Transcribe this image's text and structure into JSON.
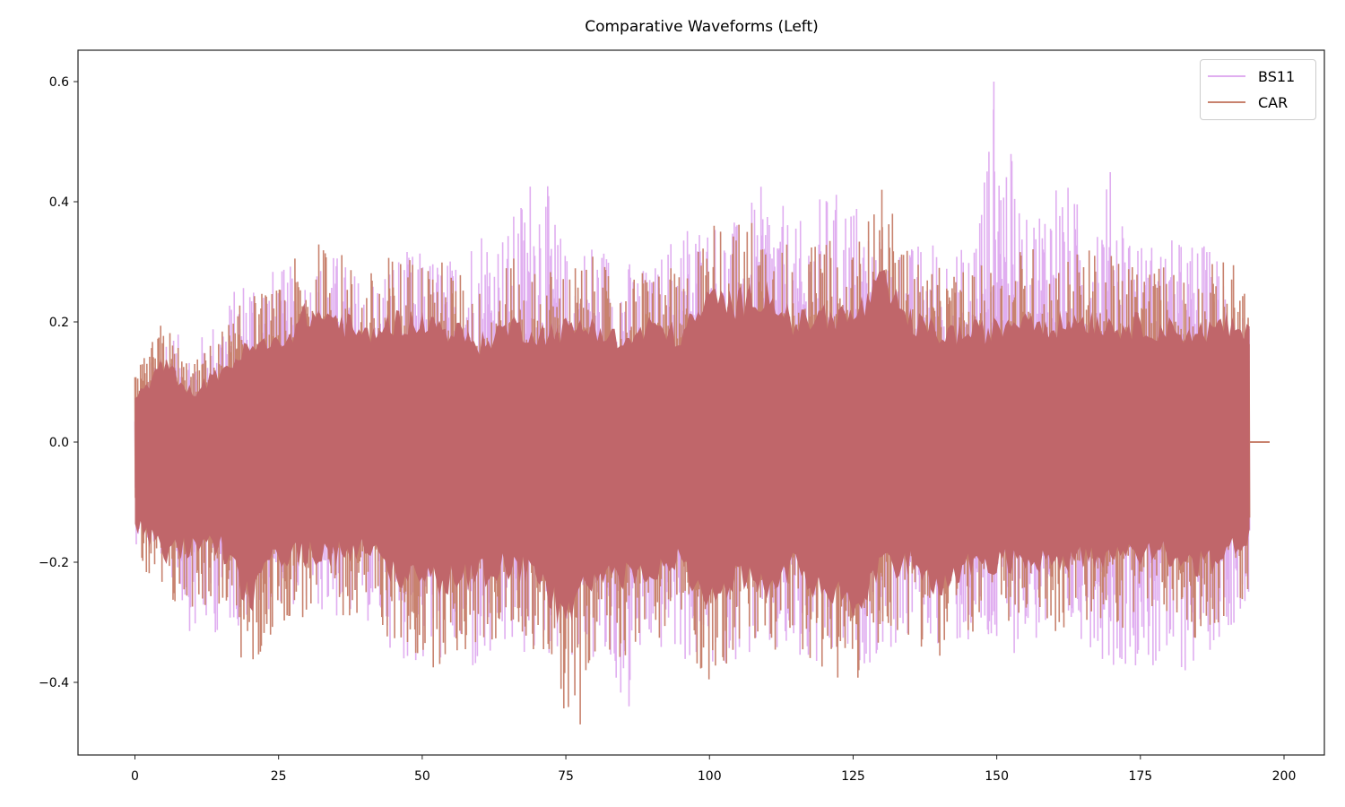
{
  "chart_data": {
    "type": "line",
    "title": "Comparative Waveforms (Left)",
    "xlabel": "",
    "ylabel": "",
    "xlim": [
      -10,
      208
    ],
    "ylim": [
      -0.52,
      0.65
    ],
    "xticks": [
      0,
      25,
      50,
      75,
      100,
      125,
      150,
      175,
      200
    ],
    "xtick_labels": [
      "0",
      "25",
      "50",
      "75",
      "100",
      "125",
      "150",
      "175",
      "200"
    ],
    "yticks": [
      0.6,
      0.4,
      0.2,
      0.0,
      -0.2,
      -0.4
    ],
    "ytick_labels": [
      "0.6",
      "0.4",
      "0.2",
      "0.0",
      "−0.2",
      "−0.4"
    ],
    "grid": false,
    "legend_position": "upper right",
    "series": [
      {
        "name": "BS11",
        "color": "#e0aef0",
        "x_range": [
          0,
          194
        ],
        "envelope_x": [
          0,
          5,
          10,
          15,
          20,
          25,
          30,
          35,
          40,
          45,
          50,
          55,
          60,
          65,
          70,
          75,
          80,
          85,
          90,
          95,
          100,
          105,
          110,
          115,
          120,
          125,
          130,
          135,
          140,
          145,
          150,
          155,
          160,
          165,
          170,
          175,
          180,
          185,
          190,
          194
        ],
        "envelope_upper": [
          0.05,
          0.2,
          0.16,
          0.22,
          0.3,
          0.29,
          0.3,
          0.32,
          0.27,
          0.32,
          0.32,
          0.31,
          0.38,
          0.36,
          0.49,
          0.32,
          0.35,
          0.31,
          0.29,
          0.38,
          0.38,
          0.37,
          0.44,
          0.36,
          0.42,
          0.42,
          0.35,
          0.33,
          0.35,
          0.32,
          0.6,
          0.37,
          0.47,
          0.39,
          0.46,
          0.34,
          0.34,
          0.34,
          0.31,
          0.19
        ],
        "envelope_lower": [
          -0.17,
          -0.2,
          -0.33,
          -0.32,
          -0.3,
          -0.27,
          -0.28,
          -0.3,
          -0.3,
          -0.35,
          -0.39,
          -0.36,
          -0.41,
          -0.36,
          -0.37,
          -0.36,
          -0.38,
          -0.44,
          -0.35,
          -0.37,
          -0.39,
          -0.36,
          -0.37,
          -0.39,
          -0.4,
          -0.38,
          -0.36,
          -0.34,
          -0.34,
          -0.35,
          -0.37,
          -0.34,
          -0.34,
          -0.33,
          -0.38,
          -0.37,
          -0.41,
          -0.37,
          -0.32,
          -0.26
        ],
        "peak_max": {
          "x": 149.5,
          "y": 0.6
        },
        "peak_min": {
          "x": 86,
          "y": -0.44
        }
      },
      {
        "name": "CAR",
        "color": "#c8826e",
        "x_range": [
          0,
          197.5
        ],
        "envelope_x": [
          0,
          5,
          10,
          15,
          20,
          25,
          30,
          35,
          40,
          45,
          50,
          55,
          60,
          65,
          70,
          75,
          80,
          85,
          90,
          95,
          100,
          105,
          110,
          115,
          120,
          125,
          130,
          135,
          140,
          145,
          150,
          155,
          160,
          165,
          170,
          175,
          180,
          185,
          190,
          194,
          197.5
        ],
        "envelope_upper": [
          0.11,
          0.21,
          0.13,
          0.19,
          0.25,
          0.26,
          0.34,
          0.33,
          0.28,
          0.32,
          0.32,
          0.3,
          0.26,
          0.31,
          0.29,
          0.3,
          0.31,
          0.26,
          0.31,
          0.28,
          0.38,
          0.37,
          0.4,
          0.31,
          0.34,
          0.33,
          0.42,
          0.32,
          0.29,
          0.29,
          0.3,
          0.34,
          0.31,
          0.33,
          0.31,
          0.31,
          0.3,
          0.29,
          0.31,
          0.28,
          0.0
        ],
        "envelope_lower": [
          -0.21,
          -0.3,
          -0.28,
          -0.28,
          -0.42,
          -0.3,
          -0.3,
          -0.3,
          -0.28,
          -0.35,
          -0.38,
          -0.37,
          -0.35,
          -0.33,
          -0.35,
          -0.47,
          -0.35,
          -0.36,
          -0.33,
          -0.32,
          -0.42,
          -0.35,
          -0.38,
          -0.33,
          -0.4,
          -0.43,
          -0.33,
          -0.32,
          -0.38,
          -0.32,
          -0.32,
          -0.31,
          -0.32,
          -0.31,
          -0.32,
          -0.3,
          -0.3,
          -0.33,
          -0.3,
          -0.26,
          0.0
        ],
        "peak_max": {
          "x": 130,
          "y": 0.42
        },
        "peak_min": {
          "x": 77.5,
          "y": -0.47
        }
      }
    ],
    "overlap_color": "#c0666a"
  },
  "legend": {
    "items": [
      {
        "label": "BS11",
        "color": "#e0aef0"
      },
      {
        "label": "CAR",
        "color": "#c8826e"
      }
    ]
  }
}
